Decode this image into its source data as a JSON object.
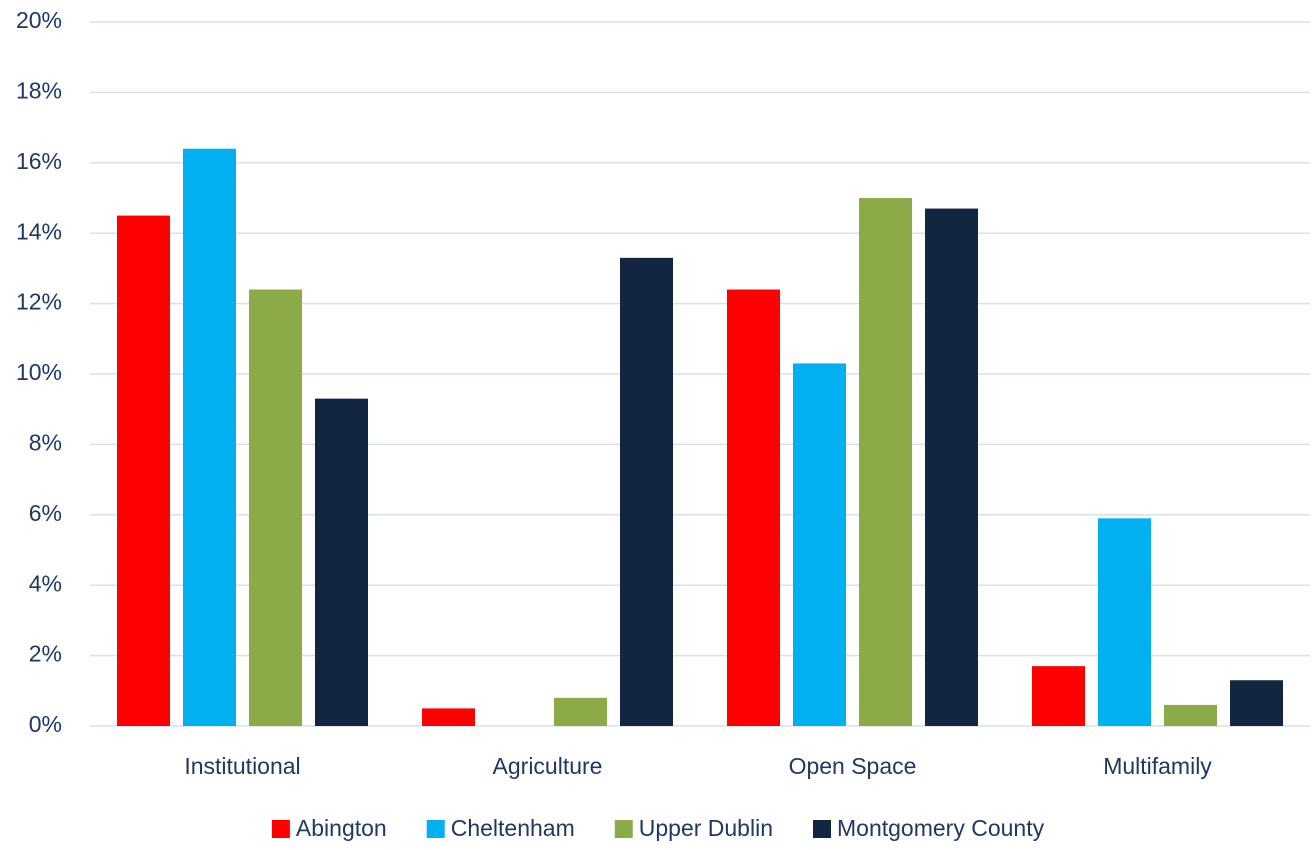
{
  "chart_data": {
    "type": "bar",
    "categories": [
      "Institutional",
      "Agriculture",
      "Open Space",
      "Multifamily"
    ],
    "series": [
      {
        "name": "Abington",
        "color": "#ff0000",
        "values": [
          14.5,
          0.5,
          12.4,
          1.7
        ]
      },
      {
        "name": "Cheltenham",
        "color": "#00b0f0",
        "values": [
          16.4,
          0,
          10.3,
          5.9
        ]
      },
      {
        "name": "Upper Dublin",
        "color": "#8aab48",
        "values": [
          12.4,
          0.8,
          15.0,
          0.6
        ]
      },
      {
        "name": "Montgomery County",
        "color": "#132641",
        "values": [
          9.3,
          13.3,
          14.7,
          1.3
        ]
      }
    ],
    "ylim": [
      0,
      20
    ],
    "yticks": [
      {
        "value": 0,
        "label": "0%"
      },
      {
        "value": 2,
        "label": "2%"
      },
      {
        "value": 4,
        "label": "4%"
      },
      {
        "value": 6,
        "label": "6%"
      },
      {
        "value": 8,
        "label": "8%"
      },
      {
        "value": 10,
        "label": "10%"
      },
      {
        "value": 12,
        "label": "12%"
      },
      {
        "value": 14,
        "label": "14%"
      },
      {
        "value": 16,
        "label": "16%"
      },
      {
        "value": 18,
        "label": "18%"
      },
      {
        "value": 20,
        "label": "20%"
      }
    ],
    "grid": true,
    "legend": "bottom"
  }
}
